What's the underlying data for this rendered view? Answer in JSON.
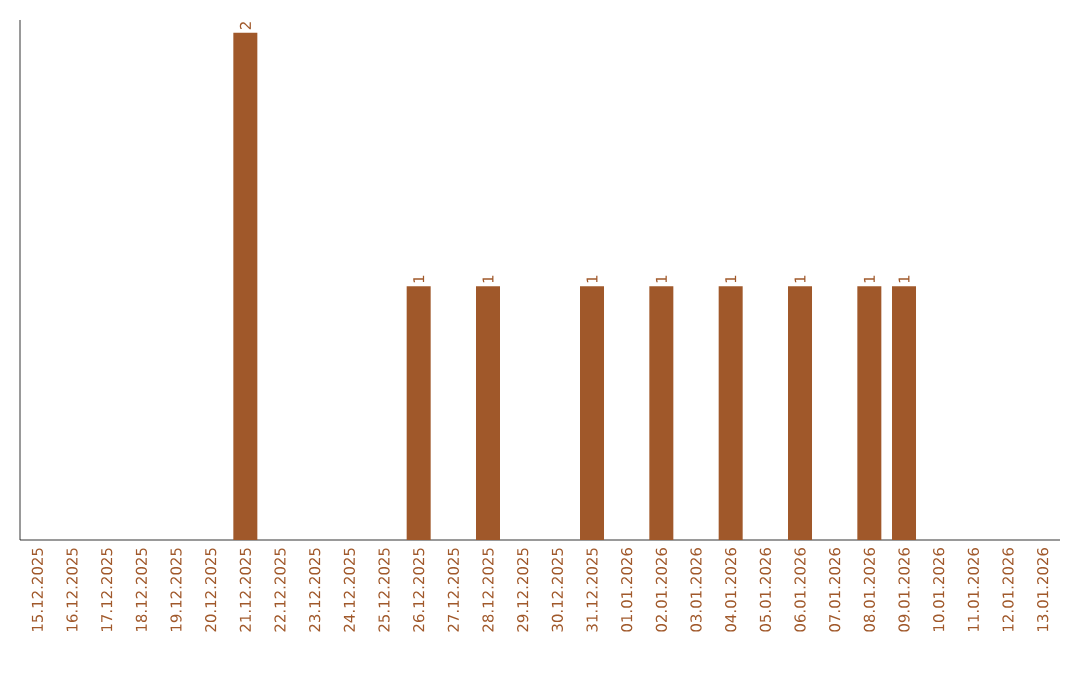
{
  "chart_data": {
    "type": "bar",
    "categories": [
      "15.12.2025",
      "16.12.2025",
      "17.12.2025",
      "18.12.2025",
      "19.12.2025",
      "20.12.2025",
      "21.12.2025",
      "22.12.2025",
      "23.12.2025",
      "24.12.2025",
      "25.12.2025",
      "26.12.2025",
      "27.12.2025",
      "28.12.2025",
      "29.12.2025",
      "30.12.2025",
      "31.12.2025",
      "01.01.2026",
      "02.01.2026",
      "03.01.2026",
      "04.01.2026",
      "05.01.2026",
      "06.01.2026",
      "07.01.2026",
      "08.01.2026",
      "09.01.2026",
      "10.01.2026",
      "11.01.2026",
      "12.01.2026",
      "13.01.2026"
    ],
    "values": [
      0,
      0,
      0,
      0,
      0,
      0,
      2,
      0,
      0,
      0,
      0,
      1,
      0,
      1,
      0,
      0,
      1,
      0,
      1,
      0,
      1,
      0,
      1,
      0,
      1,
      1,
      0,
      0,
      0,
      0
    ],
    "value_labels": [
      null,
      null,
      null,
      null,
      null,
      null,
      "2",
      null,
      null,
      null,
      null,
      "1",
      null,
      "1",
      null,
      null,
      "1",
      null,
      "1",
      null,
      "1",
      null,
      "1",
      null,
      "1",
      "1",
      null,
      null,
      null,
      null
    ],
    "color": "#a0582a",
    "ylim": [
      0,
      2.05
    ],
    "tick_labels": "x"
  }
}
